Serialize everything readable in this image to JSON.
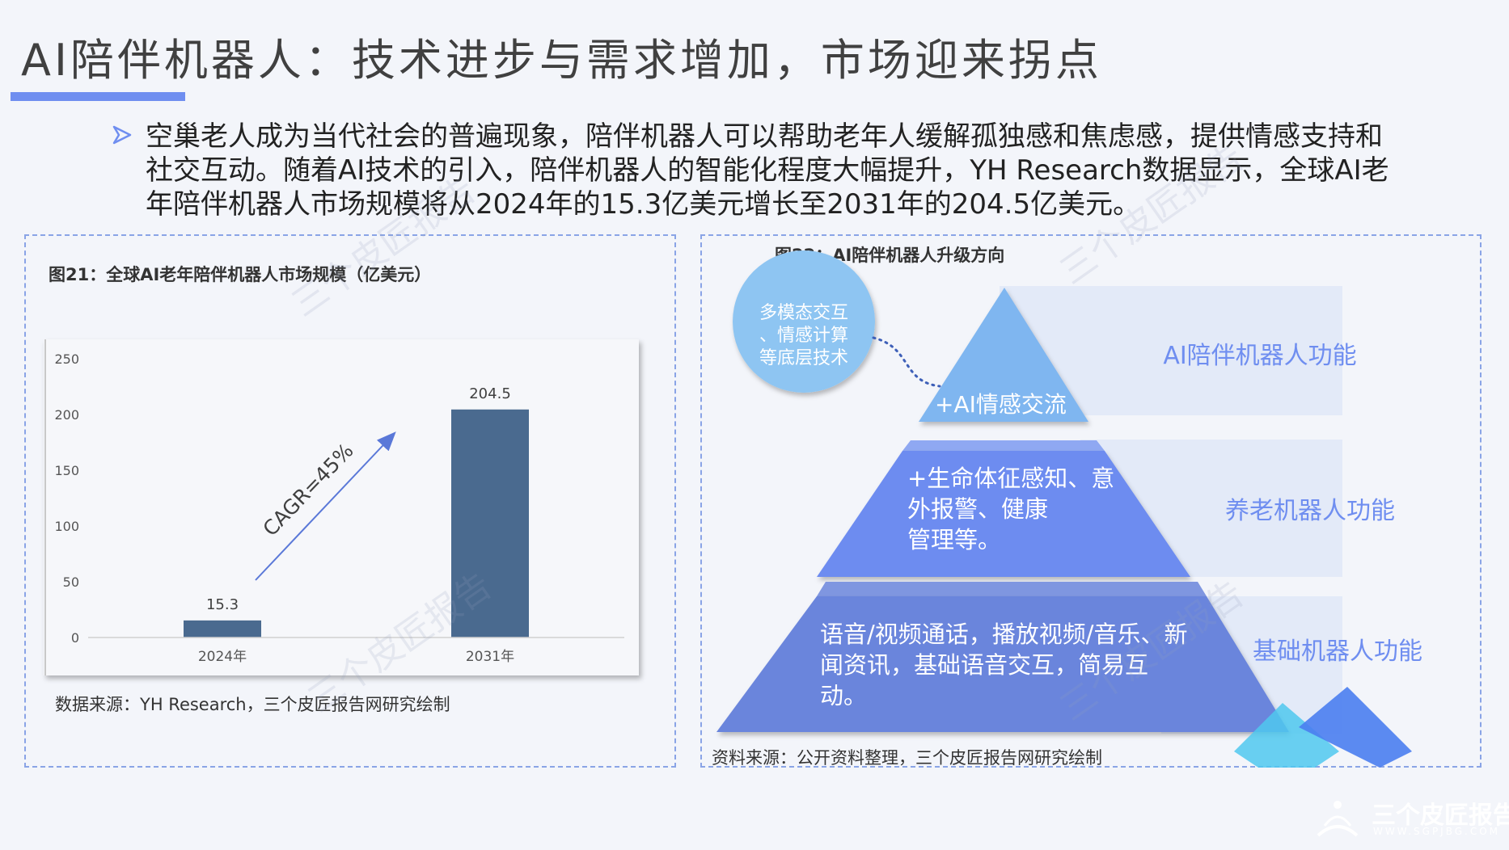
{
  "header": {
    "title": "AI陪伴机器人：技术进步与需求增加，市场迎来拐点"
  },
  "intro": {
    "text": "空巢老人成为当代社会的普遍现象，陪伴机器人可以帮助老年人缓解孤独感和焦虑感，提供情感支持和社交互动。随着AI技术的引入，陪伴机器人的智能化程度大幅提升，YH Research数据显示，全球AI老年陪伴机器人市场规模将从2024年的15.3亿美元增长至2031年的204.5亿美元。"
  },
  "figure21": {
    "title": "图21：全球AI老年陪伴机器人市场规模（亿美元）",
    "source": "数据来源：YH Research，三个皮匠报告网研究绘制",
    "cagr_label": "CAGR=45%"
  },
  "chart_data": {
    "type": "bar",
    "title": "图21：全球AI老年陪伴机器人市场规模（亿美元）",
    "categories": [
      "2024年",
      "2031年"
    ],
    "values": [
      15.3,
      204.5
    ],
    "value_labels": [
      "15.3",
      "204.5"
    ],
    "yticks": [
      "0",
      "50",
      "100",
      "150",
      "200",
      "250"
    ],
    "ylim": [
      0,
      250
    ],
    "xlabel": "",
    "ylabel": "",
    "grid": false,
    "bar_color": "#4a6a8f",
    "annotation": "CAGR=45%"
  },
  "figure22": {
    "title": "图22：AI陪伴机器人升级方向",
    "circle_text": "多模态交互、情感计算等底层技术",
    "tiers": [
      {
        "text": "+AI情感交流",
        "label": "AI陪伴机器人功能"
      },
      {
        "text": "+生命体征感知、意外报警、健康管理等。",
        "label": "养老机器人功能"
      },
      {
        "text": "语音/视频通话，播放视频/音乐、新闻资讯，基础语音交互，简易互动。",
        "label": "基础机器人功能"
      }
    ],
    "source": "资料来源：公开资料整理，三个皮匠报告网研究绘制"
  },
  "logo": {
    "name": "三个皮匠报告",
    "url_text": "WWW.SGPJBG.COM"
  },
  "watermark": "三个皮匠报告",
  "colors": {
    "accent": "#6f8ef0",
    "bar": "#4a6a8f",
    "tier_top": "#7fb6f0",
    "tier_mid": "#6d8cf0",
    "tier_bottom": "#6a85dc",
    "label_text": "#6f8ef0"
  }
}
